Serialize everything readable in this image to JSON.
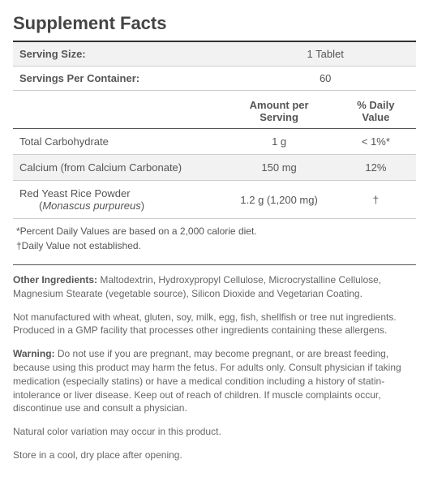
{
  "title": "Supplement Facts",
  "serving": {
    "sizeLabel": "Serving Size:",
    "sizeValue": "1 Tablet",
    "perLabel": "Servings Per Container:",
    "perValue": "60"
  },
  "headers": {
    "amount": "Amount per Serving",
    "dv": "% Daily Value"
  },
  "rows": {
    "carb": {
      "name": "Total Carbohydrate",
      "amount": "1 g",
      "dv": "< 1%*"
    },
    "calcium": {
      "name": "Calcium (from Calcium Carbonate)",
      "amount": "150 mg",
      "dv": "12%"
    },
    "rice": {
      "name": "Red Yeast Rice Powder",
      "sub": "(",
      "species": "Monascus purpureus",
      "subEnd": ")",
      "amount": "1.2 g (1,200 mg)",
      "dv": "†"
    }
  },
  "foot": {
    "pdv": "*Percent Daily Values are based on a 2,000 calorie diet.",
    "dagger": "†Daily Value not established."
  },
  "other": {
    "label": "Other Ingredients:",
    "text": " Maltodextrin, Hydroxypropyl Cellulose, Microcrystalline Cellulose, Magnesium Stearate (vegetable source), Silicon Dioxide and Vegetarian Coating."
  },
  "allergen": "Not manufactured with wheat, gluten, soy, milk, egg, fish, shellfish or tree nut ingredients. Produced in a GMP facility that processes other ingredients containing these allergens.",
  "warning": {
    "label": "Warning:",
    "text": " Do not use if you are pregnant, may become pregnant, or are breast feeding, because using this product may harm the fetus. For adults only. Consult physician if taking medication (especially statins) or have a medical condition including a history of statin-intolerance or liver disease. Keep out of reach of children. If muscle complaints occur, discontinue use and consult a physician."
  },
  "colorNote": "Natural color variation may occur in this product.",
  "storage": "Store in a cool, dry place after opening."
}
